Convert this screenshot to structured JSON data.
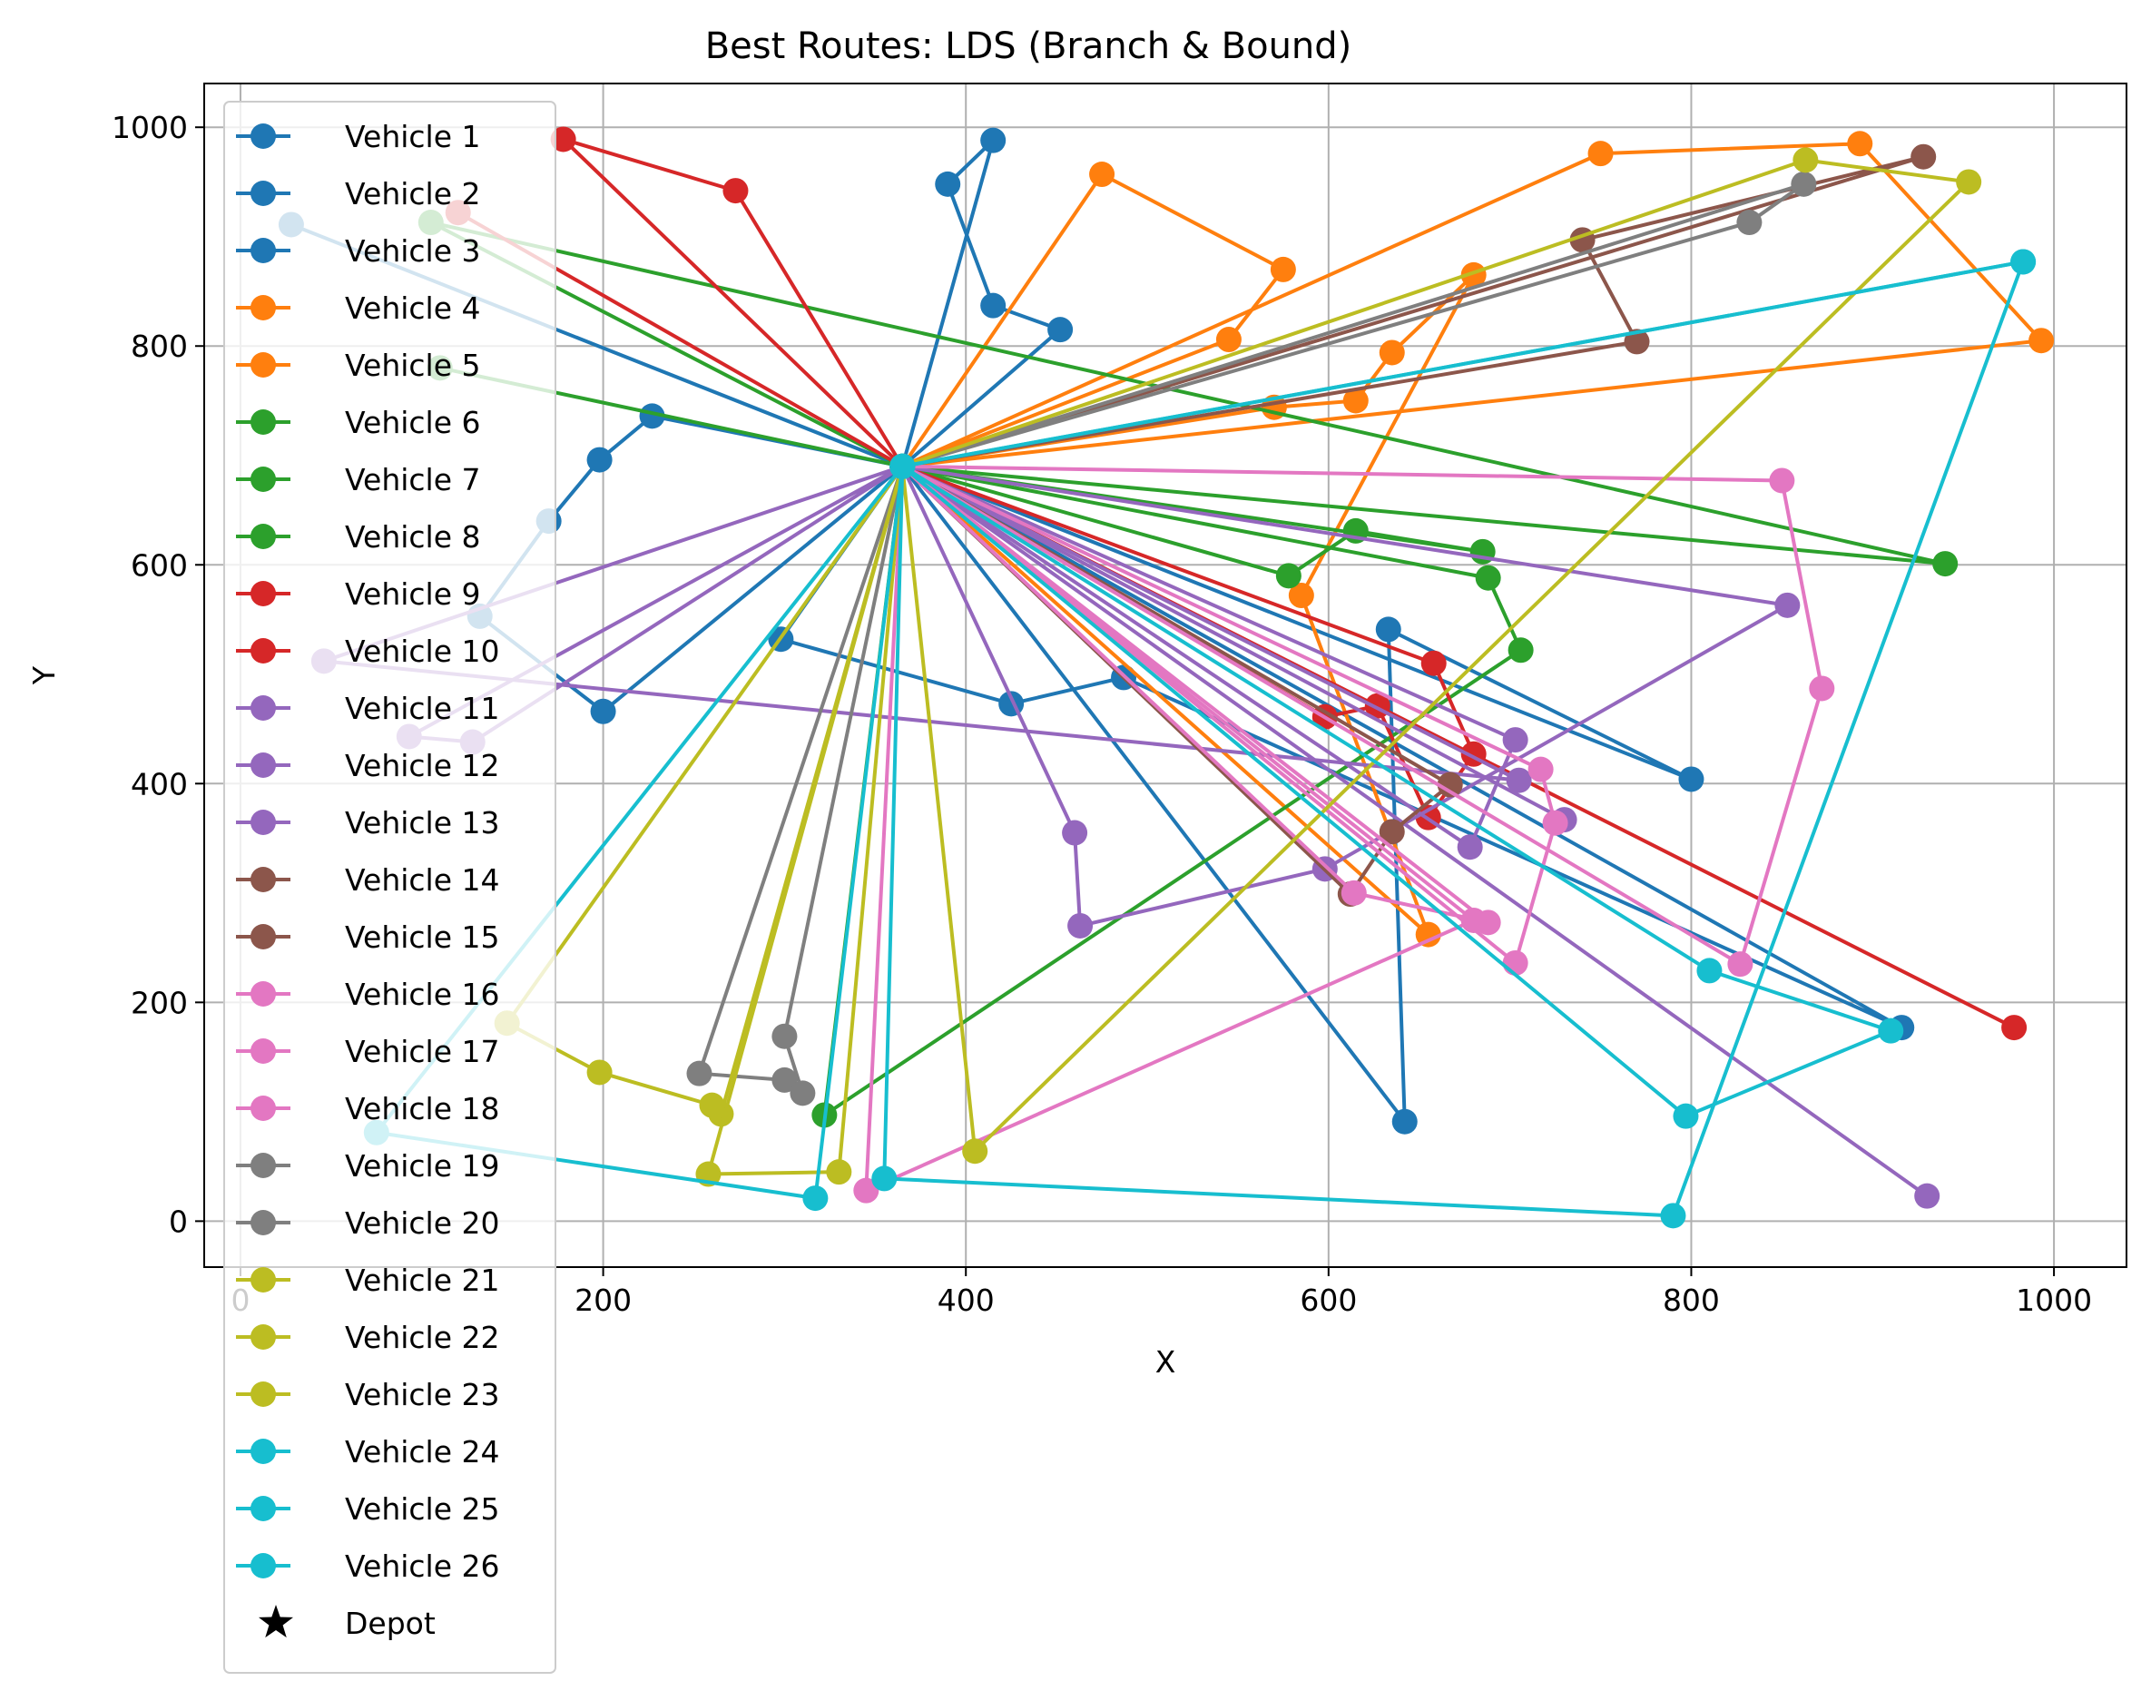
{
  "chart_data": {
    "type": "line",
    "title": "Best Routes: LDS (Branch & Bound)",
    "xlabel": "X",
    "ylabel": "Y",
    "xlim": [
      -20,
      1040
    ],
    "ylim": [
      -42,
      1040
    ],
    "xticks": [
      0,
      200,
      400,
      600,
      800,
      1000
    ],
    "yticks": [
      0,
      200,
      400,
      600,
      800,
      1000
    ],
    "grid": true,
    "legend_position": "left",
    "depot": {
      "label": "Depot",
      "x": 365,
      "y": 690
    },
    "series": [
      {
        "name": "Vehicle 1",
        "color": "#1f77b4",
        "points": [
          [
            365,
            690
          ],
          [
            415,
            988
          ],
          [
            390,
            948
          ],
          [
            415,
            837
          ],
          [
            452,
            815
          ],
          [
            365,
            690
          ]
        ]
      },
      {
        "name": "Vehicle 2",
        "color": "#1f77b4",
        "points": [
          [
            365,
            690
          ],
          [
            227,
            736
          ],
          [
            198,
            696
          ],
          [
            170,
            640
          ],
          [
            132,
            553
          ],
          [
            200,
            466
          ],
          [
            365,
            690
          ]
        ]
      },
      {
        "name": "Vehicle 3",
        "color": "#1f77b4",
        "points": [
          [
            365,
            690
          ],
          [
            28,
            911
          ],
          [
            365,
            690
          ],
          [
            642,
            91
          ],
          [
            633,
            541
          ],
          [
            800,
            404
          ],
          [
            365,
            690
          ],
          [
            916,
            177
          ],
          [
            487,
            497
          ],
          [
            425,
            473
          ],
          [
            298,
            532
          ],
          [
            365,
            690
          ]
        ]
      },
      {
        "name": "Vehicle 4",
        "color": "#ff7f0e",
        "points": [
          [
            365,
            690
          ],
          [
            475,
            957
          ],
          [
            575,
            870
          ],
          [
            545,
            806
          ],
          [
            365,
            690
          ],
          [
            750,
            976
          ],
          [
            893,
            985
          ],
          [
            993,
            805
          ],
          [
            365,
            690
          ]
        ]
      },
      {
        "name": "Vehicle 5",
        "color": "#ff7f0e",
        "points": [
          [
            365,
            690
          ],
          [
            570,
            744
          ],
          [
            615,
            750
          ],
          [
            635,
            794
          ],
          [
            680,
            865
          ],
          [
            585,
            572
          ],
          [
            655,
            262
          ],
          [
            365,
            690
          ]
        ]
      },
      {
        "name": "Vehicle 6",
        "color": "#2ca02c",
        "points": [
          [
            365,
            690
          ],
          [
            105,
            913
          ],
          [
            940,
            601
          ],
          [
            365,
            690
          ]
        ]
      },
      {
        "name": "Vehicle 7",
        "color": "#2ca02c",
        "points": [
          [
            365,
            690
          ],
          [
            110,
            780
          ],
          [
            365,
            690
          ],
          [
            578,
            590
          ],
          [
            615,
            631
          ],
          [
            685,
            612
          ],
          [
            365,
            690
          ]
        ]
      },
      {
        "name": "Vehicle 8",
        "color": "#2ca02c",
        "points": [
          [
            365,
            690
          ],
          [
            688,
            588
          ],
          [
            706,
            522
          ],
          [
            322,
            97
          ],
          [
            365,
            690
          ]
        ]
      },
      {
        "name": "Vehicle 9",
        "color": "#d62728",
        "points": [
          [
            365,
            690
          ],
          [
            178,
            989
          ],
          [
            273,
            942
          ],
          [
            365,
            690
          ],
          [
            978,
            177
          ],
          [
            365,
            690
          ]
        ]
      },
      {
        "name": "Vehicle 10",
        "color": "#d62728",
        "points": [
          [
            365,
            690
          ],
          [
            120,
            922
          ],
          [
            365,
            690
          ],
          [
            658,
            510
          ],
          [
            680,
            427
          ],
          [
            655,
            369
          ],
          [
            627,
            471
          ],
          [
            598,
            461
          ],
          [
            365,
            690
          ]
        ]
      },
      {
        "name": "Vehicle 11",
        "color": "#9467bd",
        "points": [
          [
            365,
            690
          ],
          [
            46,
            512
          ],
          [
            705,
            403
          ],
          [
            365,
            690
          ],
          [
            460,
            355
          ],
          [
            463,
            270
          ],
          [
            598,
            322
          ],
          [
            853,
            563
          ],
          [
            365,
            690
          ]
        ]
      },
      {
        "name": "Vehicle 12",
        "color": "#9467bd",
        "points": [
          [
            365,
            690
          ],
          [
            128,
            438
          ],
          [
            93,
            443
          ],
          [
            365,
            690
          ],
          [
            678,
            342
          ],
          [
            703,
            440
          ],
          [
            365,
            690
          ]
        ]
      },
      {
        "name": "Vehicle 13",
        "color": "#9467bd",
        "points": [
          [
            365,
            690
          ],
          [
            730,
            367
          ],
          [
            365,
            690
          ],
          [
            930,
            23
          ],
          [
            365,
            690
          ]
        ]
      },
      {
        "name": "Vehicle 14",
        "color": "#8c564b",
        "points": [
          [
            365,
            690
          ],
          [
            928,
            973
          ],
          [
            740,
            897
          ],
          [
            770,
            804
          ],
          [
            365,
            690
          ]
        ]
      },
      {
        "name": "Vehicle 15",
        "color": "#8c564b",
        "points": [
          [
            365,
            690
          ],
          [
            612,
            299
          ],
          [
            635,
            356
          ],
          [
            667,
            399
          ],
          [
            365,
            690
          ]
        ]
      },
      {
        "name": "Vehicle 16",
        "color": "#e377c2",
        "points": [
          [
            365,
            690
          ],
          [
            850,
            677
          ],
          [
            872,
            487
          ],
          [
            827,
            235
          ],
          [
            365,
            690
          ]
        ]
      },
      {
        "name": "Vehicle 17",
        "color": "#e377c2",
        "points": [
          [
            365,
            690
          ],
          [
            614,
            300
          ],
          [
            688,
            273
          ],
          [
            365,
            690
          ],
          [
            717,
            413
          ],
          [
            725,
            364
          ],
          [
            703,
            236
          ],
          [
            365,
            690
          ]
        ]
      },
      {
        "name": "Vehicle 18",
        "color": "#e377c2",
        "points": [
          [
            365,
            690
          ],
          [
            345,
            28
          ],
          [
            680,
            275
          ],
          [
            365,
            690
          ]
        ]
      },
      {
        "name": "Vehicle 19",
        "color": "#7f7f7f",
        "points": [
          [
            365,
            690
          ],
          [
            862,
            948
          ],
          [
            832,
            913
          ],
          [
            365,
            690
          ]
        ]
      },
      {
        "name": "Vehicle 20",
        "color": "#7f7f7f",
        "points": [
          [
            365,
            690
          ],
          [
            253,
            135
          ],
          [
            300,
            129
          ],
          [
            310,
            117
          ],
          [
            300,
            169
          ],
          [
            365,
            690
          ]
        ]
      },
      {
        "name": "Vehicle 21",
        "color": "#bcbd22",
        "points": [
          [
            365,
            690
          ],
          [
            863,
            970
          ],
          [
            953,
            950
          ],
          [
            405,
            64
          ],
          [
            365,
            690
          ]
        ]
      },
      {
        "name": "Vehicle 22",
        "color": "#bcbd22",
        "points": [
          [
            365,
            690
          ],
          [
            147,
            181
          ],
          [
            198,
            136
          ],
          [
            260,
            106
          ],
          [
            265,
            98
          ],
          [
            365,
            690
          ]
        ]
      },
      {
        "name": "Vehicle 23",
        "color": "#bcbd22",
        "points": [
          [
            365,
            690
          ],
          [
            258,
            43
          ],
          [
            330,
            45
          ],
          [
            365,
            690
          ]
        ]
      },
      {
        "name": "Vehicle 24",
        "color": "#17becf",
        "points": [
          [
            365,
            690
          ],
          [
            75,
            81
          ],
          [
            317,
            21
          ],
          [
            365,
            690
          ]
        ]
      },
      {
        "name": "Vehicle 25",
        "color": "#17becf",
        "points": [
          [
            365,
            690
          ],
          [
            983,
            877
          ],
          [
            365,
            690
          ],
          [
            810,
            229
          ],
          [
            910,
            174
          ],
          [
            797,
            96
          ],
          [
            365,
            690
          ]
        ]
      },
      {
        "name": "Vehicle 26",
        "color": "#17becf",
        "points": [
          [
            365,
            690
          ],
          [
            355,
            39
          ],
          [
            790,
            5
          ],
          [
            983,
            877
          ],
          [
            365,
            690
          ]
        ]
      }
    ]
  }
}
